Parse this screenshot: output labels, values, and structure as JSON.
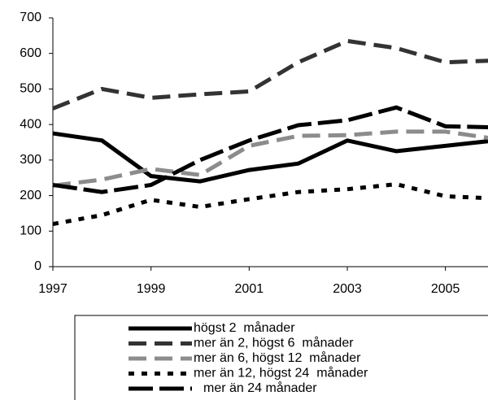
{
  "chart_data": {
    "type": "line",
    "x": [
      1997,
      1998,
      1999,
      2000,
      2001,
      2002,
      2003,
      2004,
      2005,
      2006
    ],
    "series": [
      {
        "name": "högst 2  månader",
        "color": "#000000",
        "style": "solid",
        "values": [
          375,
          355,
          255,
          240,
          272,
          290,
          355,
          325,
          340,
          355
        ]
      },
      {
        "name": "mer än 2, högst 6  månader",
        "color": "#333333",
        "style": "dashed",
        "values": [
          445,
          500,
          475,
          485,
          493,
          575,
          635,
          615,
          575,
          580
        ]
      },
      {
        "name": "mer än 6, högst 12  månader",
        "color": "#8c8c8c",
        "style": "dashed",
        "values": [
          228,
          245,
          275,
          258,
          340,
          368,
          370,
          380,
          380,
          360
        ]
      },
      {
        "name": "mer än 12, högst 24  månader",
        "color": "#000000",
        "style": "dotted",
        "values": [
          120,
          145,
          188,
          168,
          190,
          210,
          218,
          232,
          198,
          192
        ]
      },
      {
        "name": "mer än 24 månader",
        "color": "#000000",
        "style": "longdash",
        "values": [
          230,
          210,
          230,
          300,
          355,
          398,
          412,
          448,
          395,
          392
        ]
      }
    ],
    "xlim": [
      1997,
      2006
    ],
    "xticks": [
      1997,
      1999,
      2001,
      2003,
      2005
    ],
    "ylim": [
      0,
      700
    ],
    "yticks": [
      0,
      100,
      200,
      300,
      400,
      500,
      600,
      700
    ],
    "legend": "bottom"
  }
}
